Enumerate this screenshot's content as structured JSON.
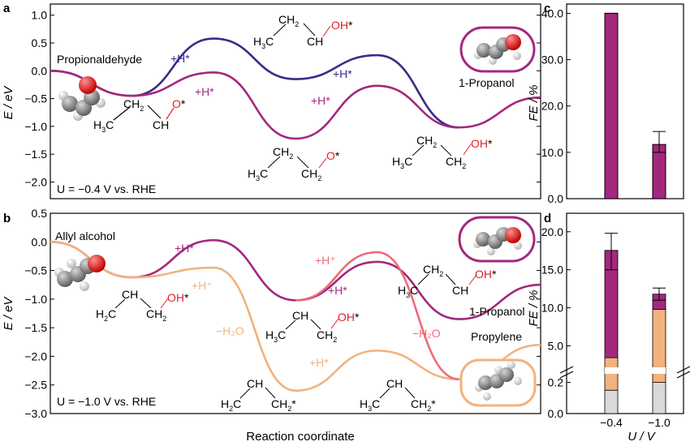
{
  "chart_data": [
    {
      "panel": "a",
      "type": "line",
      "condition": "U = −0.4 V vs. RHE",
      "xlabel": "Reaction coordinate",
      "ylabel": "E / eV",
      "ylim": [
        -2.3,
        1.2
      ],
      "yticks": [
        "1.0",
        "0.5",
        "0.0",
        "−0.5",
        "−1.0",
        "−1.5",
        "−2.0"
      ],
      "series": [
        {
          "color": "#3b2a8a",
          "points": [
            [
              0,
              0.0
            ],
            [
              1,
              -0.45
            ],
            [
              2,
              0.58
            ],
            [
              3,
              -0.15
            ],
            [
              4,
              0.28
            ],
            [
              5,
              -1.02
            ]
          ]
        },
        {
          "color": "#a3287d",
          "points": [
            [
              0,
              0.0
            ],
            [
              1,
              -0.45
            ],
            [
              2,
              -0.03
            ],
            [
              3,
              -1.22
            ],
            [
              4,
              -0.27
            ],
            [
              5,
              -1.02
            ],
            [
              6,
              -0.48
            ]
          ]
        }
      ],
      "species": [
        {
          "name": "Propionaldehyde"
        },
        {
          "name": "1-Propanol"
        }
      ],
      "step_labels": [
        "+H*",
        "+H*",
        "+H*",
        "+H*"
      ],
      "formula_parts": {
        "h3c": "H",
        "three": "3",
        "c": "C",
        "ch": "CH",
        "ch2": "CH",
        "two": "2",
        "o": "O",
        "oh": "OH",
        "star": "*"
      }
    },
    {
      "panel": "b",
      "type": "line",
      "condition": "U = −1.0 V vs. RHE",
      "xlabel": "Reaction coordinate",
      "ylabel": "E / eV",
      "ylim": [
        -3.0,
        0.5
      ],
      "yticks": [
        "0.5",
        "0.0",
        "−0.5",
        "−1.0",
        "−1.5",
        "−2.0",
        "−2.5",
        "−3.0"
      ],
      "series": [
        {
          "color": "#a3287d",
          "points": [
            [
              0,
              0.0
            ],
            [
              1,
              -0.62
            ],
            [
              2,
              0.03
            ],
            [
              3,
              -1.02
            ],
            [
              4,
              -0.35
            ],
            [
              5,
              -1.35
            ],
            [
              6,
              -0.75
            ]
          ]
        },
        {
          "color": "#f2b27e",
          "points": [
            [
              0,
              0.0
            ],
            [
              1,
              -0.62
            ],
            [
              2,
              -0.45
            ],
            [
              3,
              -2.6
            ],
            [
              4,
              -1.9
            ],
            [
              5,
              -2.4
            ],
            [
              6,
              -1.8
            ]
          ]
        },
        {
          "color": "#ef6a78",
          "points": [
            [
              3,
              -1.02
            ],
            [
              4,
              -0.18
            ],
            [
              5,
              -2.4
            ]
          ]
        }
      ],
      "species": [
        {
          "name": "Allyl alcohol"
        },
        {
          "name": "1-Propanol"
        },
        {
          "name": "Propylene"
        }
      ],
      "step_labels": [
        "+H*",
        "+H*",
        "+H⁺",
        "−H₂O",
        "+H⁺",
        "−H₂O",
        "+H*"
      ]
    },
    {
      "panel": "c",
      "type": "bar",
      "categories": [
        "−0.4",
        "−1.0"
      ],
      "values": [
        40.0,
        11.7
      ],
      "errors": [
        [
          40.0,
          40.0
        ],
        [
          10.0,
          14.5
        ]
      ],
      "ylabel": "FE / %",
      "ylim": [
        0,
        42
      ],
      "yticks": [
        "0.0",
        "10.0",
        "20.0",
        "30.0",
        "40.0"
      ],
      "color": "#a3287d"
    },
    {
      "panel": "d",
      "type": "bar",
      "stacked": true,
      "categories": [
        "−0.4",
        "−1.0"
      ],
      "xlabel": "U / V",
      "ylabel": "FE / %",
      "axis_break": true,
      "yticks": [
        "0.0",
        "0.2",
        "5.0",
        "10.0",
        "15.0",
        "20.0"
      ],
      "series": [
        {
          "color": "#d9d9d9",
          "values": [
            0.15,
            0.2
          ]
        },
        {
          "color": "#f2b27e",
          "values": [
            3.3,
            9.6
          ]
        },
        {
          "color": "#a3287d",
          "values": [
            14.1,
            2.0
          ]
        }
      ],
      "totals": [
        17.5,
        11.8
      ],
      "error_total": [
        [
          15.0,
          19.8
        ],
        [
          11.0,
          12.6
        ]
      ]
    }
  ],
  "panel_letters": [
    "a",
    "b",
    "c",
    "d"
  ]
}
